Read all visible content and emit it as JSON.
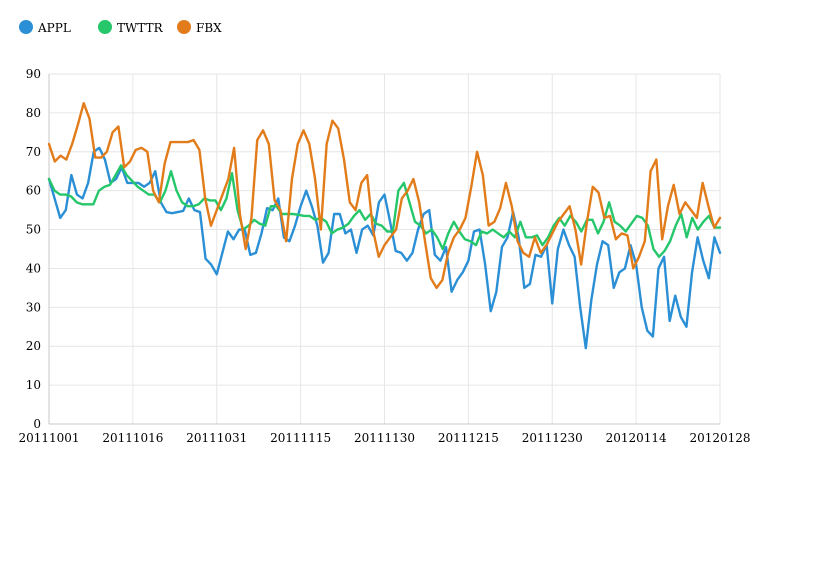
{
  "chart_data": {
    "type": "line",
    "title": "",
    "xlabel": "",
    "ylabel": "",
    "ylim": [
      0,
      90
    ],
    "yticks": [
      0,
      10,
      20,
      30,
      40,
      50,
      60,
      70,
      80,
      90
    ],
    "xticks": [
      "20111001",
      "20111016",
      "20111031",
      "20111115",
      "20111130",
      "20111215",
      "20111230",
      "20120114",
      "20120128"
    ],
    "x_start": "20111001",
    "x_end": "20120128",
    "grid": true,
    "legend_position": "top-left",
    "series": [
      {
        "name": "APPL",
        "color": "#2b8fd6",
        "values": [
          63,
          58,
          53,
          55,
          64,
          59,
          58,
          62,
          70,
          71,
          68,
          62,
          63,
          66,
          62,
          62,
          62,
          61,
          62,
          65,
          57,
          54.5,
          54.2,
          54.5,
          54.8,
          58,
          55,
          54.5,
          42.5,
          41,
          38.5,
          44,
          49.5,
          47.5,
          50,
          50,
          43.5,
          44,
          49,
          55.5,
          55,
          58,
          48,
          47,
          51,
          56,
          60,
          56,
          51,
          41.5,
          44,
          54,
          54,
          49,
          50,
          44,
          50,
          51,
          48.5,
          57,
          59,
          52,
          44.5,
          44,
          42,
          44,
          50,
          54,
          55,
          43.5,
          42,
          45.5,
          34,
          37,
          39,
          42,
          49.5,
          50,
          41,
          29,
          34,
          45.5,
          48,
          54.5,
          48,
          35,
          36,
          43.5,
          43,
          46,
          31,
          45,
          50,
          46,
          43,
          30,
          19.5,
          32,
          41,
          47,
          46,
          35,
          39,
          40,
          46,
          41,
          30,
          24,
          22.5,
          40,
          43,
          26.5,
          33,
          27.5,
          25,
          39,
          48,
          42,
          37.5,
          48,
          44
        ]
      },
      {
        "name": "TWTTR",
        "color": "#25c76a",
        "values": [
          63,
          60,
          59,
          59,
          58.5,
          57,
          56.5,
          56.5,
          56.5,
          60,
          61,
          61.5,
          64,
          66.5,
          64,
          62.5,
          61,
          60,
          59,
          59,
          57,
          60,
          65,
          60,
          57,
          56,
          56,
          56.5,
          58,
          57.5,
          57.5,
          55,
          58,
          64.5,
          55,
          50,
          51,
          52.5,
          51.5,
          51,
          56,
          56,
          54,
          54,
          54,
          53.8,
          53.5,
          53.5,
          52.5,
          53,
          52,
          49,
          50,
          50.5,
          51.5,
          53.5,
          55,
          52.5,
          54,
          51.5,
          51,
          49.5,
          49.5,
          60,
          62,
          57,
          52,
          51,
          49,
          50,
          48,
          45,
          49,
          52,
          49.5,
          47.5,
          47,
          46,
          49.5,
          49,
          50,
          49,
          48,
          49.5,
          48,
          52,
          48,
          48,
          48.5,
          46,
          48,
          51,
          53,
          51,
          53.5,
          52,
          49.5,
          52.5,
          52.5,
          49,
          52,
          57,
          52,
          51,
          49.5,
          51.5,
          53.5,
          53,
          51,
          45,
          43,
          44.5,
          47,
          51,
          54,
          48,
          53,
          50,
          52,
          53.5,
          50.5,
          50.5
        ]
      },
      {
        "name": "FBX",
        "color": "#e27c1a",
        "values": [
          72,
          67.5,
          69,
          68,
          72,
          77,
          82.5,
          78.5,
          68.5,
          68.5,
          70,
          75,
          76.5,
          66,
          67.5,
          70.5,
          71,
          70,
          60,
          57,
          67,
          72.5,
          72.5,
          72.5,
          72.5,
          73,
          70.5,
          58,
          51,
          55,
          59,
          63,
          71,
          54,
          45,
          53,
          73,
          75.5,
          72,
          57.5,
          55,
          47,
          63,
          72,
          75.5,
          72,
          63,
          50,
          72,
          78,
          76,
          68,
          57,
          55,
          62,
          64,
          50,
          43,
          46,
          48,
          50,
          58,
          60,
          63,
          57,
          47,
          37.5,
          35,
          37,
          44,
          48,
          50,
          53,
          61,
          70,
          64,
          51,
          52,
          55.5,
          62,
          56,
          47,
          44,
          43,
          48,
          44,
          46,
          49,
          52,
          54,
          56,
          50,
          41,
          52,
          61,
          59.5,
          53,
          53.5,
          47.5,
          49,
          48.5,
          40,
          43,
          47,
          65,
          68,
          47.5,
          56,
          61.5,
          54,
          57,
          55,
          53,
          62,
          56,
          50.5,
          53
        ]
      }
    ]
  }
}
